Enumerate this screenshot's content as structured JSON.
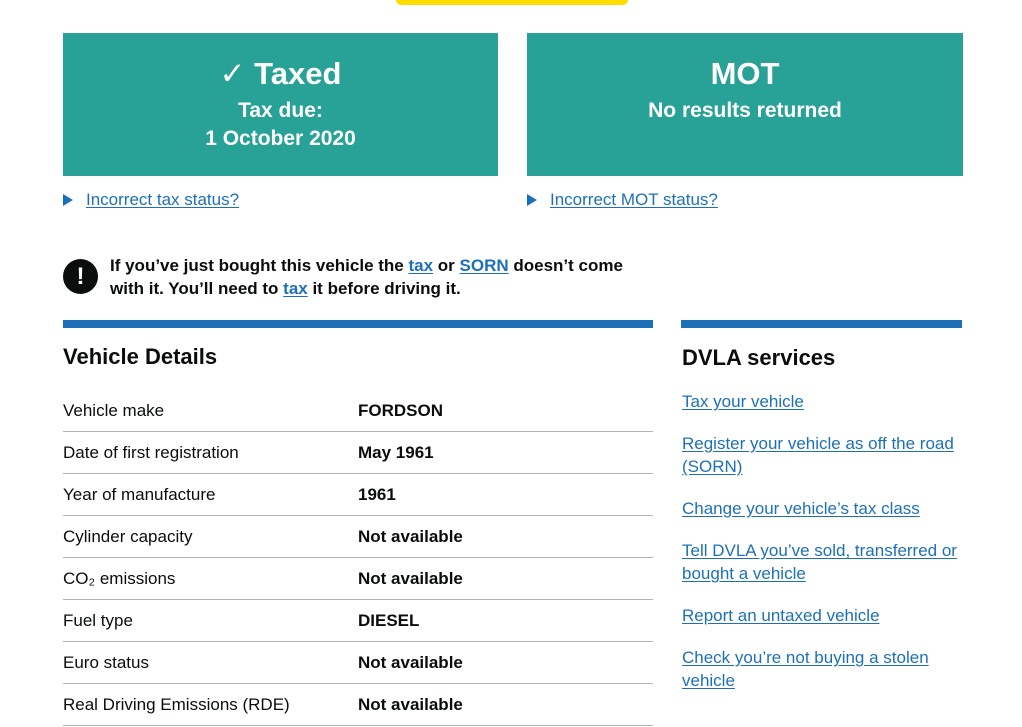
{
  "status": {
    "tax": {
      "heading": "✓ Taxed",
      "due_label": "Tax due:",
      "due_date": "1 October 2020",
      "link": "Incorrect tax status?"
    },
    "mot": {
      "heading": "MOT",
      "result": "No results returned",
      "link": "Incorrect MOT status?"
    }
  },
  "warning": {
    "icon": "!",
    "part1": "If you’ve just bought this vehicle the ",
    "tax_link": "tax",
    "part2": " or ",
    "sorn_link": "SORN",
    "part3": " doesn’t come with it. You’ll need to ",
    "tax_link2": "tax",
    "part4": " it before driving it."
  },
  "vehicle_details": {
    "title": "Vehicle Details",
    "rows": [
      {
        "label": "Vehicle make",
        "value": "FORDSON"
      },
      {
        "label": "Date of first registration",
        "value": "May 1961"
      },
      {
        "label": "Year of manufacture",
        "value": "1961"
      },
      {
        "label": "Cylinder capacity",
        "value": "Not available"
      },
      {
        "label": "CO₂ emissions",
        "value": "Not available"
      },
      {
        "label": "Fuel type",
        "value": "DIESEL"
      },
      {
        "label": "Euro status",
        "value": "Not available"
      },
      {
        "label": "Real Driving Emissions (RDE)",
        "value": "Not available"
      }
    ]
  },
  "services": {
    "title": "DVLA services",
    "links": [
      "Tax your vehicle",
      "Register your vehicle as off the road (SORN)",
      "Change your vehicle’s tax class",
      "Tell DVLA you’ve sold, transferred or bought a vehicle",
      "Report an untaxed vehicle",
      "Check you’re not buying a stolen vehicle"
    ]
  },
  "colors": {
    "panel": "#28a197",
    "link": "#1d70b8",
    "accent_bar": "#ffdd00"
  }
}
